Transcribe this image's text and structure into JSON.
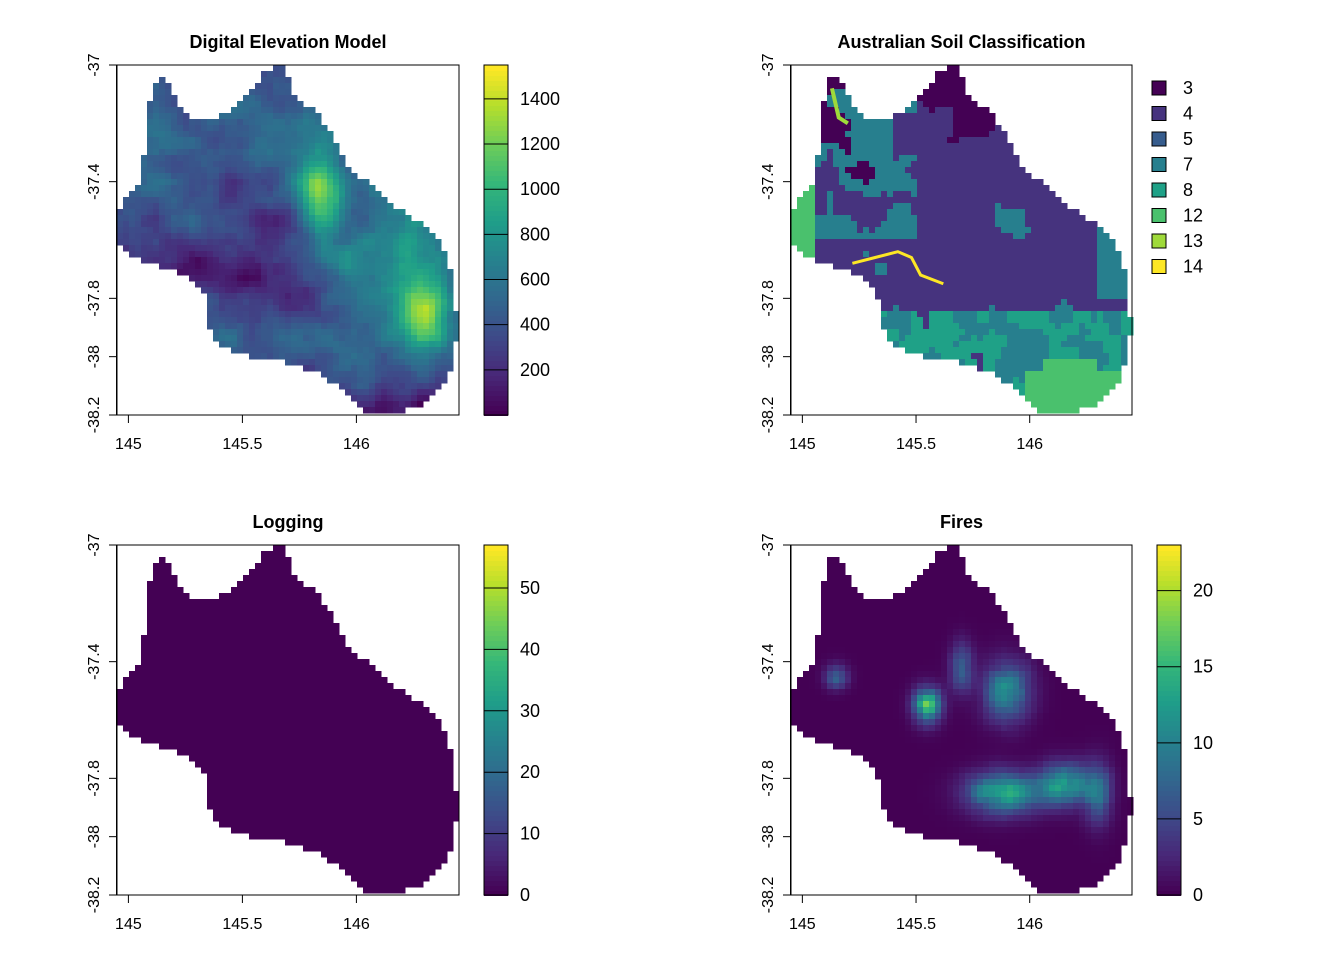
{
  "chart_data": [
    {
      "type": "heatmap",
      "title": "Digital Elevation Model",
      "xlim": [
        144.95,
        146.45
      ],
      "ylim": [
        -38.2,
        -37.0
      ],
      "x_ticks": [
        "145",
        "145.5",
        "146"
      ],
      "y_ticks": [
        "-37",
        "-37.4",
        "-37.8",
        "-38",
        "-38.2"
      ],
      "legend": {
        "kind": "continuous",
        "range": [
          0,
          1550
        ],
        "ticks": [
          "200",
          "400",
          "600",
          "800",
          "1000",
          "1200",
          "1400"
        ],
        "tick_values": [
          200,
          400,
          600,
          800,
          1000,
          1200,
          1400
        ]
      },
      "field": "elevation"
    },
    {
      "type": "heatmap",
      "title": "Australian Soil Classification",
      "xlim": [
        144.95,
        146.45
      ],
      "ylim": [
        -38.2,
        -37.0
      ],
      "x_ticks": [
        "145",
        "145.5",
        "146"
      ],
      "y_ticks": [
        "-37",
        "-37.4",
        "-37.8",
        "-38",
        "-38.2"
      ],
      "legend": {
        "kind": "categorical",
        "classes": [
          "3",
          "4",
          "5",
          "7",
          "8",
          "12",
          "13",
          "14"
        ],
        "colors": [
          "#440154",
          "#46337E",
          "#365C8D",
          "#277F8E",
          "#1FA187",
          "#4AC16D",
          "#9FDA3A",
          "#FDE725"
        ]
      },
      "field": "soil"
    },
    {
      "type": "heatmap",
      "title": "Logging",
      "xlim": [
        144.95,
        146.45
      ],
      "ylim": [
        -38.2,
        -37.0
      ],
      "x_ticks": [
        "145",
        "145.5",
        "146"
      ],
      "y_ticks": [
        "-37",
        "-37.4",
        "-37.8",
        "-38",
        "-38.2"
      ],
      "legend": {
        "kind": "continuous",
        "range": [
          0,
          57
        ],
        "ticks": [
          "0",
          "10",
          "20",
          "30",
          "40",
          "50"
        ],
        "tick_values": [
          0,
          10,
          20,
          30,
          40,
          50
        ]
      },
      "field": "logging"
    },
    {
      "type": "heatmap",
      "title": "Fires",
      "xlim": [
        144.95,
        146.45
      ],
      "ylim": [
        -38.2,
        -37.0
      ],
      "x_ticks": [
        "145",
        "145.5",
        "146"
      ],
      "y_ticks": [
        "-37",
        "-37.4",
        "-37.8",
        "-38",
        "-38.2"
      ],
      "legend": {
        "kind": "continuous",
        "range": [
          0,
          23
        ],
        "ticks": [
          "0",
          "5",
          "10",
          "15",
          "20"
        ],
        "tick_values": [
          0,
          5,
          10,
          15,
          20
        ]
      },
      "field": "fires"
    }
  ],
  "colors": {
    "viridis": [
      "#440154",
      "#482878",
      "#3E4A89",
      "#31688E",
      "#26828E",
      "#1F9E89",
      "#35B779",
      "#6DCD59",
      "#B4DE2C",
      "#FDE725"
    ]
  }
}
